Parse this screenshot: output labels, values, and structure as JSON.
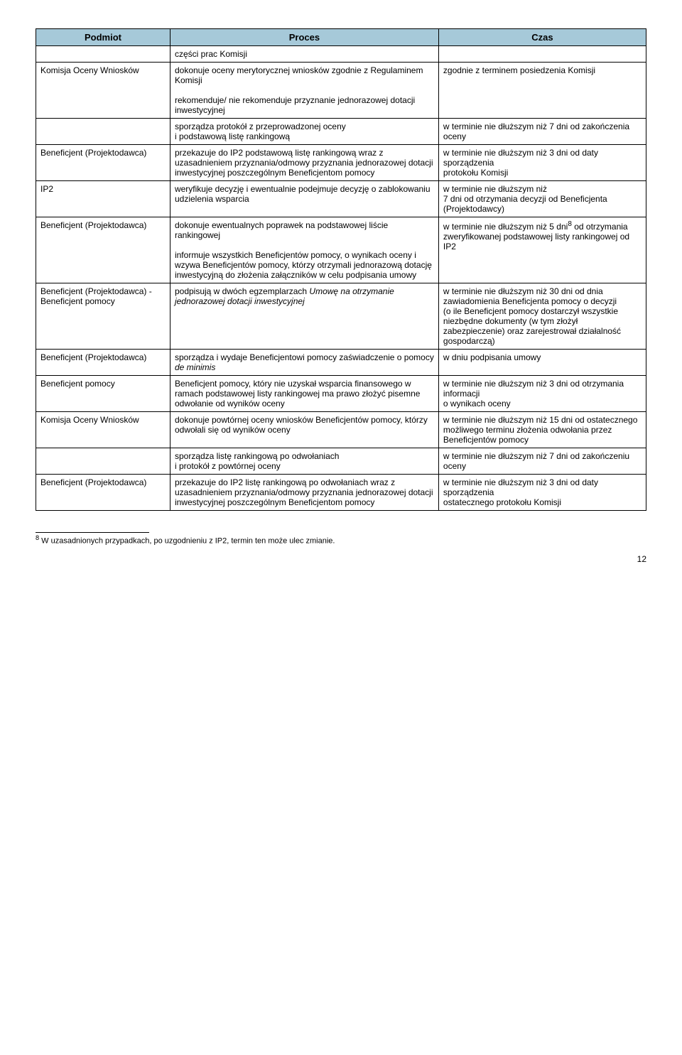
{
  "headers": {
    "c1": "Podmiot",
    "c2": "Proces",
    "c3": "Czas"
  },
  "rows": [
    {
      "c1": "",
      "c2": "części prac Komisji",
      "c3": ""
    },
    {
      "c1": "Komisja Oceny Wniosków",
      "c2": "dokonuje oceny merytorycznej wniosków zgodnie z Regulaminem Komisji\n\nrekomenduje/ nie rekomenduje przyznanie jednorazowej dotacji inwestycyjnej",
      "c3": "zgodnie z terminem posiedzenia Komisji"
    },
    {
      "c1": "",
      "c2": "sporządza protokół z przeprowadzonej oceny\ni podstawową  listę rankingową",
      "c3": "w terminie nie dłuższym niż 7 dni od zakończenia oceny"
    },
    {
      "c1": "Beneficjent (Projektodawca)",
      "c2": "przekazuje do IP2 podstawową listę rankingową wraz  z uzasadnieniem przyznania/odmowy przyznania jednorazowej dotacji inwestycyjnej poszczególnym Beneficjentom pomocy",
      "c3": "w terminie nie dłuższym niż 3 dni od daty sporządzenia\nprotokołu Komisji"
    },
    {
      "c1": "IP2",
      "c2": "weryfikuje decyzję i ewentualnie podejmuje decyzję o zablokowaniu udzielenia wsparcia",
      "c3": "w terminie nie dłuższym niż\n7 dni od otrzymania decyzji od Beneficjenta (Projektodawcy)"
    },
    {
      "c1": "Beneficjent (Projektodawca)",
      "c2": "dokonuje ewentualnych poprawek na podstawowej liście rankingowej\n\ninformuje wszystkich Beneficjentów pomocy, o wynikach oceny i wzywa Beneficjentów pomocy, którzy otrzymali jednorazową dotację inwestycyjną do złożenia załączników w celu podpisania umowy",
      "c3_html": "w terminie nie dłuższym niż 5 dni<sup>8</sup> od otrzymania zweryfikowanej podstawowej listy rankingowej od IP2"
    },
    {
      "c1": "Beneficjent (Projektodawca) - Beneficjent pomocy",
      "c2_html": "podpisują w dwóch egzemplarzach <span class=\"italic\">Umowę na otrzymanie jednorazowej dotacji inwestycyjnej</span>",
      "c3": "w terminie nie dłuższym niż 30 dni od dnia zawiadomienia Beneficjenta pomocy o decyzji\n(o ile Beneficjent pomocy dostarczył wszystkie niezbędne dokumenty (w tym złożył zabezpieczenie) oraz zarejestrował działalność gospodarczą)"
    },
    {
      "c1": "Beneficjent (Projektodawca)",
      "c2_html": "sporządza i wydaje Beneficjentowi pomocy zaświadczenie o pomocy <span class=\"italic\">de minimis</span>",
      "c3": "w dniu podpisania umowy"
    },
    {
      "c1": "Beneficjent pomocy",
      "c2": "Beneficjent pomocy, który nie uzyskał wsparcia finansowego w ramach podstawowej listy rankingowej ma prawo złożyć pisemne odwołanie od wyników oceny",
      "c3": "w terminie nie dłuższym niż 3 dni od otrzymania informacji\no wynikach oceny"
    },
    {
      "c1": "Komisja Oceny Wniosków",
      "c2": "dokonuje powtórnej oceny wniosków Beneficjentów pomocy, którzy odwołali się od wyników oceny",
      "c3": "w terminie nie dłuższym niż 15 dni od ostatecznego możliwego terminu złożenia odwołania przez Beneficjentów pomocy"
    },
    {
      "c1": "",
      "c2": "sporządza listę rankingową po odwołaniach\ni protokół z powtórnej oceny",
      "c3": "w terminie nie dłuższym niż 7 dni od zakończeniu oceny"
    },
    {
      "c1": "Beneficjent (Projektodawca)",
      "c2": "przekazuje do IP2 listę rankingową po odwołaniach wraz z uzasadnieniem przyznania/odmowy przyznania jednorazowej dotacji inwestycyjnej poszczególnym Beneficjentom pomocy",
      "c3": "w terminie nie dłuższym niż 3 dni od daty sporządzenia\nostatecznego protokołu Komisji"
    }
  ],
  "footnote": {
    "num": "8",
    "text": " W uzasadnionych przypadkach, po uzgodnieniu z IP2, termin ten może ulec zmianie."
  },
  "pagenum": "12"
}
